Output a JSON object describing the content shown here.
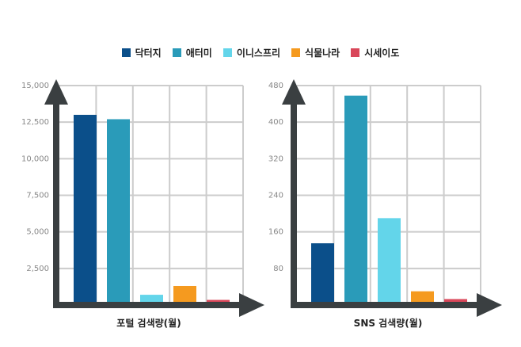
{
  "legend": [
    {
      "label": "닥터지",
      "color": "#0b4f8a"
    },
    {
      "label": "애터미",
      "color": "#2a9bb9"
    },
    {
      "label": "이니스프리",
      "color": "#63d5ea"
    },
    {
      "label": "식물나라",
      "color": "#f59a1f"
    },
    {
      "label": "시세이도",
      "color": "#d9475a"
    }
  ],
  "chart_data": [
    {
      "type": "bar",
      "categories": [
        "닥터지",
        "애터미",
        "이니스프리",
        "식물나라",
        "시세이도"
      ],
      "values": [
        13000,
        12700,
        700,
        1300,
        350
      ],
      "colors": [
        "#0b4f8a",
        "#2a9bb9",
        "#63d5ea",
        "#f59a1f",
        "#d9475a"
      ],
      "xlabel": "포털 검색량(월)",
      "ylabel": "",
      "ylim": [
        0,
        15000
      ],
      "ytick_labels": [
        "2,500",
        "5,000",
        "7,500",
        "10,000",
        "12,500",
        "15,000"
      ],
      "ytick_values": [
        2500,
        5000,
        7500,
        10000,
        12500,
        15000
      ],
      "grid": true
    },
    {
      "type": "bar",
      "categories": [
        "닥터지",
        "애터미",
        "이니스프리",
        "식물나라",
        "시세이도"
      ],
      "values": [
        135,
        458,
        190,
        30,
        13
      ],
      "colors": [
        "#0b4f8a",
        "#2a9bb9",
        "#63d5ea",
        "#f59a1f",
        "#d9475a"
      ],
      "xlabel": "SNS 검색량(월)",
      "ylabel": "",
      "ylim": [
        0,
        480
      ],
      "ytick_labels": [
        "80",
        "160",
        "240",
        "320",
        "400",
        "480"
      ],
      "ytick_values": [
        80,
        160,
        240,
        320,
        400,
        480
      ],
      "grid": true
    }
  ]
}
